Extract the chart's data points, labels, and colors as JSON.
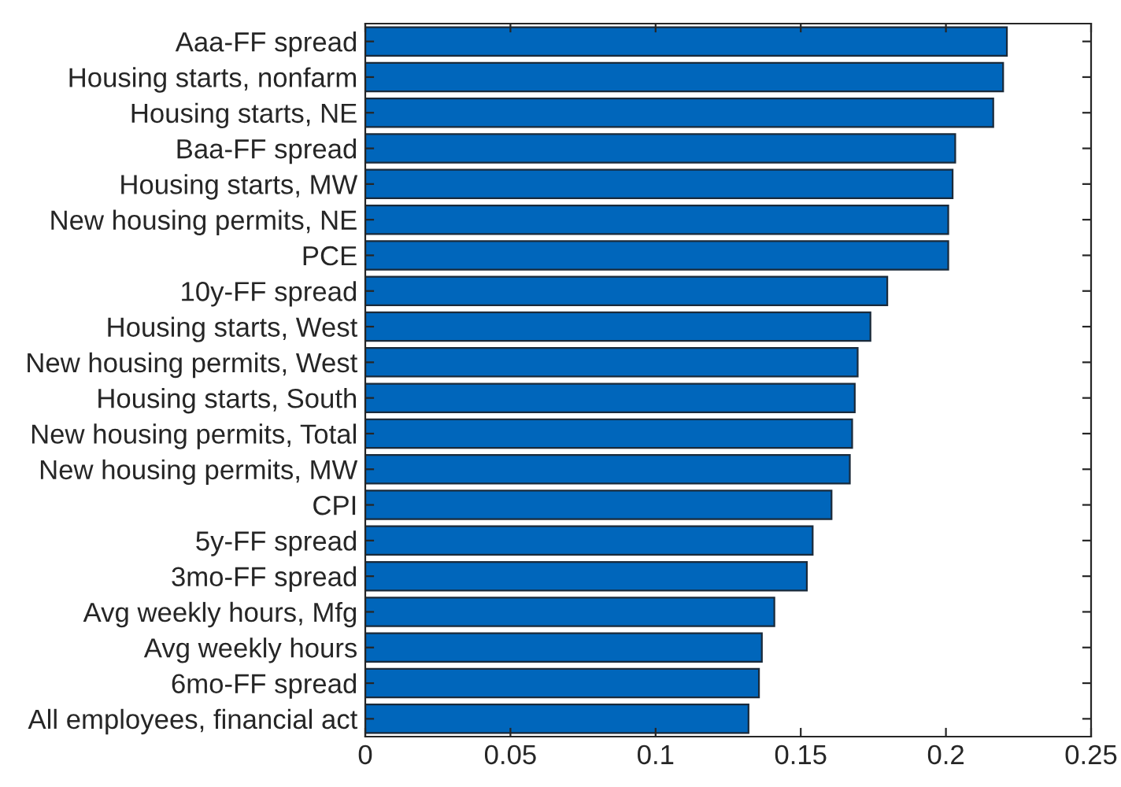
{
  "chart_data": {
    "type": "bar",
    "orientation": "horizontal",
    "categories": [
      "Aaa-FF spread",
      "Housing starts, nonfarm",
      "Housing starts, NE",
      "Baa-FF spread",
      "Housing starts, MW",
      "New housing permits, NE",
      "PCE",
      "10y-FF spread",
      "Housing starts, West",
      "New housing permits, West",
      "Housing starts, South",
      "New housing permits, Total",
      "New housing permits, MW",
      "CPI",
      "5y-FF spread",
      "3mo-FF spread",
      "Avg weekly hours, Mfg",
      "Avg weekly hours",
      "6mo-FF spread",
      "All employees, financial act"
    ],
    "values": [
      0.221,
      0.2197,
      0.2163,
      0.2032,
      0.2023,
      0.2008,
      0.2008,
      0.1798,
      0.174,
      0.1696,
      0.1686,
      0.1677,
      0.1669,
      0.1606,
      0.1541,
      0.1521,
      0.1409,
      0.1366,
      0.1356,
      0.132
    ],
    "color": "#0066bb",
    "xlim": [
      0,
      0.25
    ],
    "xticks": [
      0,
      0.05,
      0.1,
      0.15,
      0.2,
      0.25
    ],
    "grid": false
  }
}
